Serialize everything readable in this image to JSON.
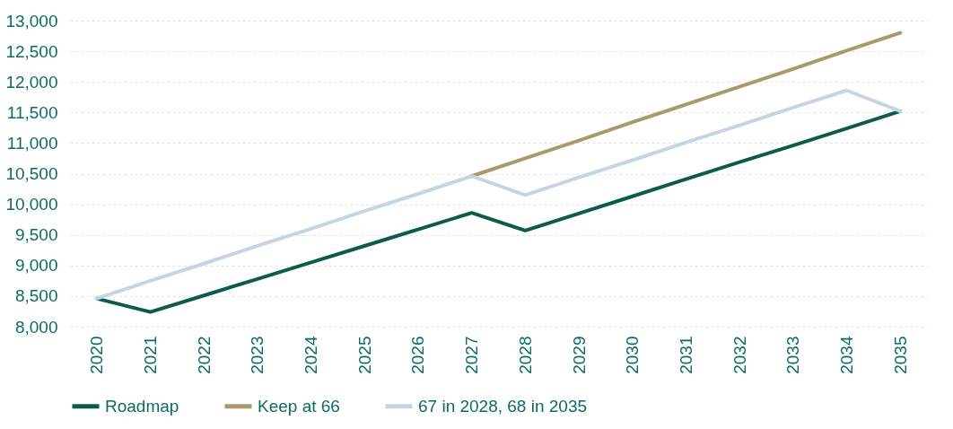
{
  "chart_data": {
    "type": "line",
    "categories": [
      "2020",
      "2021",
      "2022",
      "2023",
      "2024",
      "2025",
      "2026",
      "2027",
      "2028",
      "2029",
      "2030",
      "2031",
      "2032",
      "2033",
      "2034",
      "2035"
    ],
    "series": [
      {
        "name": "Roadmap",
        "color": "#0d5c4a",
        "values": [
          8460,
          8240,
          8510,
          8780,
          9050,
          9320,
          9590,
          9860,
          9570,
          9850,
          10130,
          10410,
          10690,
          10960,
          11240,
          11520
        ]
      },
      {
        "name": "Keep at 66",
        "color": "#a89a6a",
        "values": [
          null,
          null,
          null,
          null,
          null,
          null,
          null,
          10460,
          10750,
          11040,
          11340,
          11630,
          11920,
          12210,
          12510,
          12800
        ]
      },
      {
        "name": "67 in 2028, 68 in 2035",
        "color": "#c5d5e4",
        "values": [
          8460,
          8750,
          9030,
          9320,
          9600,
          9890,
          10170,
          10460,
          10150,
          10440,
          10720,
          11010,
          11290,
          11580,
          11860,
          11520
        ]
      }
    ],
    "ylim": [
      8000,
      13000
    ],
    "yticks": [
      {
        "value": 8000,
        "label": "8,000"
      },
      {
        "value": 8500,
        "label": "8,500"
      },
      {
        "value": 9000,
        "label": "9,000"
      },
      {
        "value": 9500,
        "label": "9,500"
      },
      {
        "value": 10000,
        "label": "10,000"
      },
      {
        "value": 10500,
        "label": "10,500"
      },
      {
        "value": 11000,
        "label": "11,000"
      },
      {
        "value": 11500,
        "label": "11,500"
      },
      {
        "value": 12000,
        "label": "12,000"
      },
      {
        "value": 12500,
        "label": "12,500"
      },
      {
        "value": 13000,
        "label": "13,000"
      }
    ],
    "grid": "y",
    "legend": "bottom",
    "marker": "none",
    "line_style": "solid"
  }
}
